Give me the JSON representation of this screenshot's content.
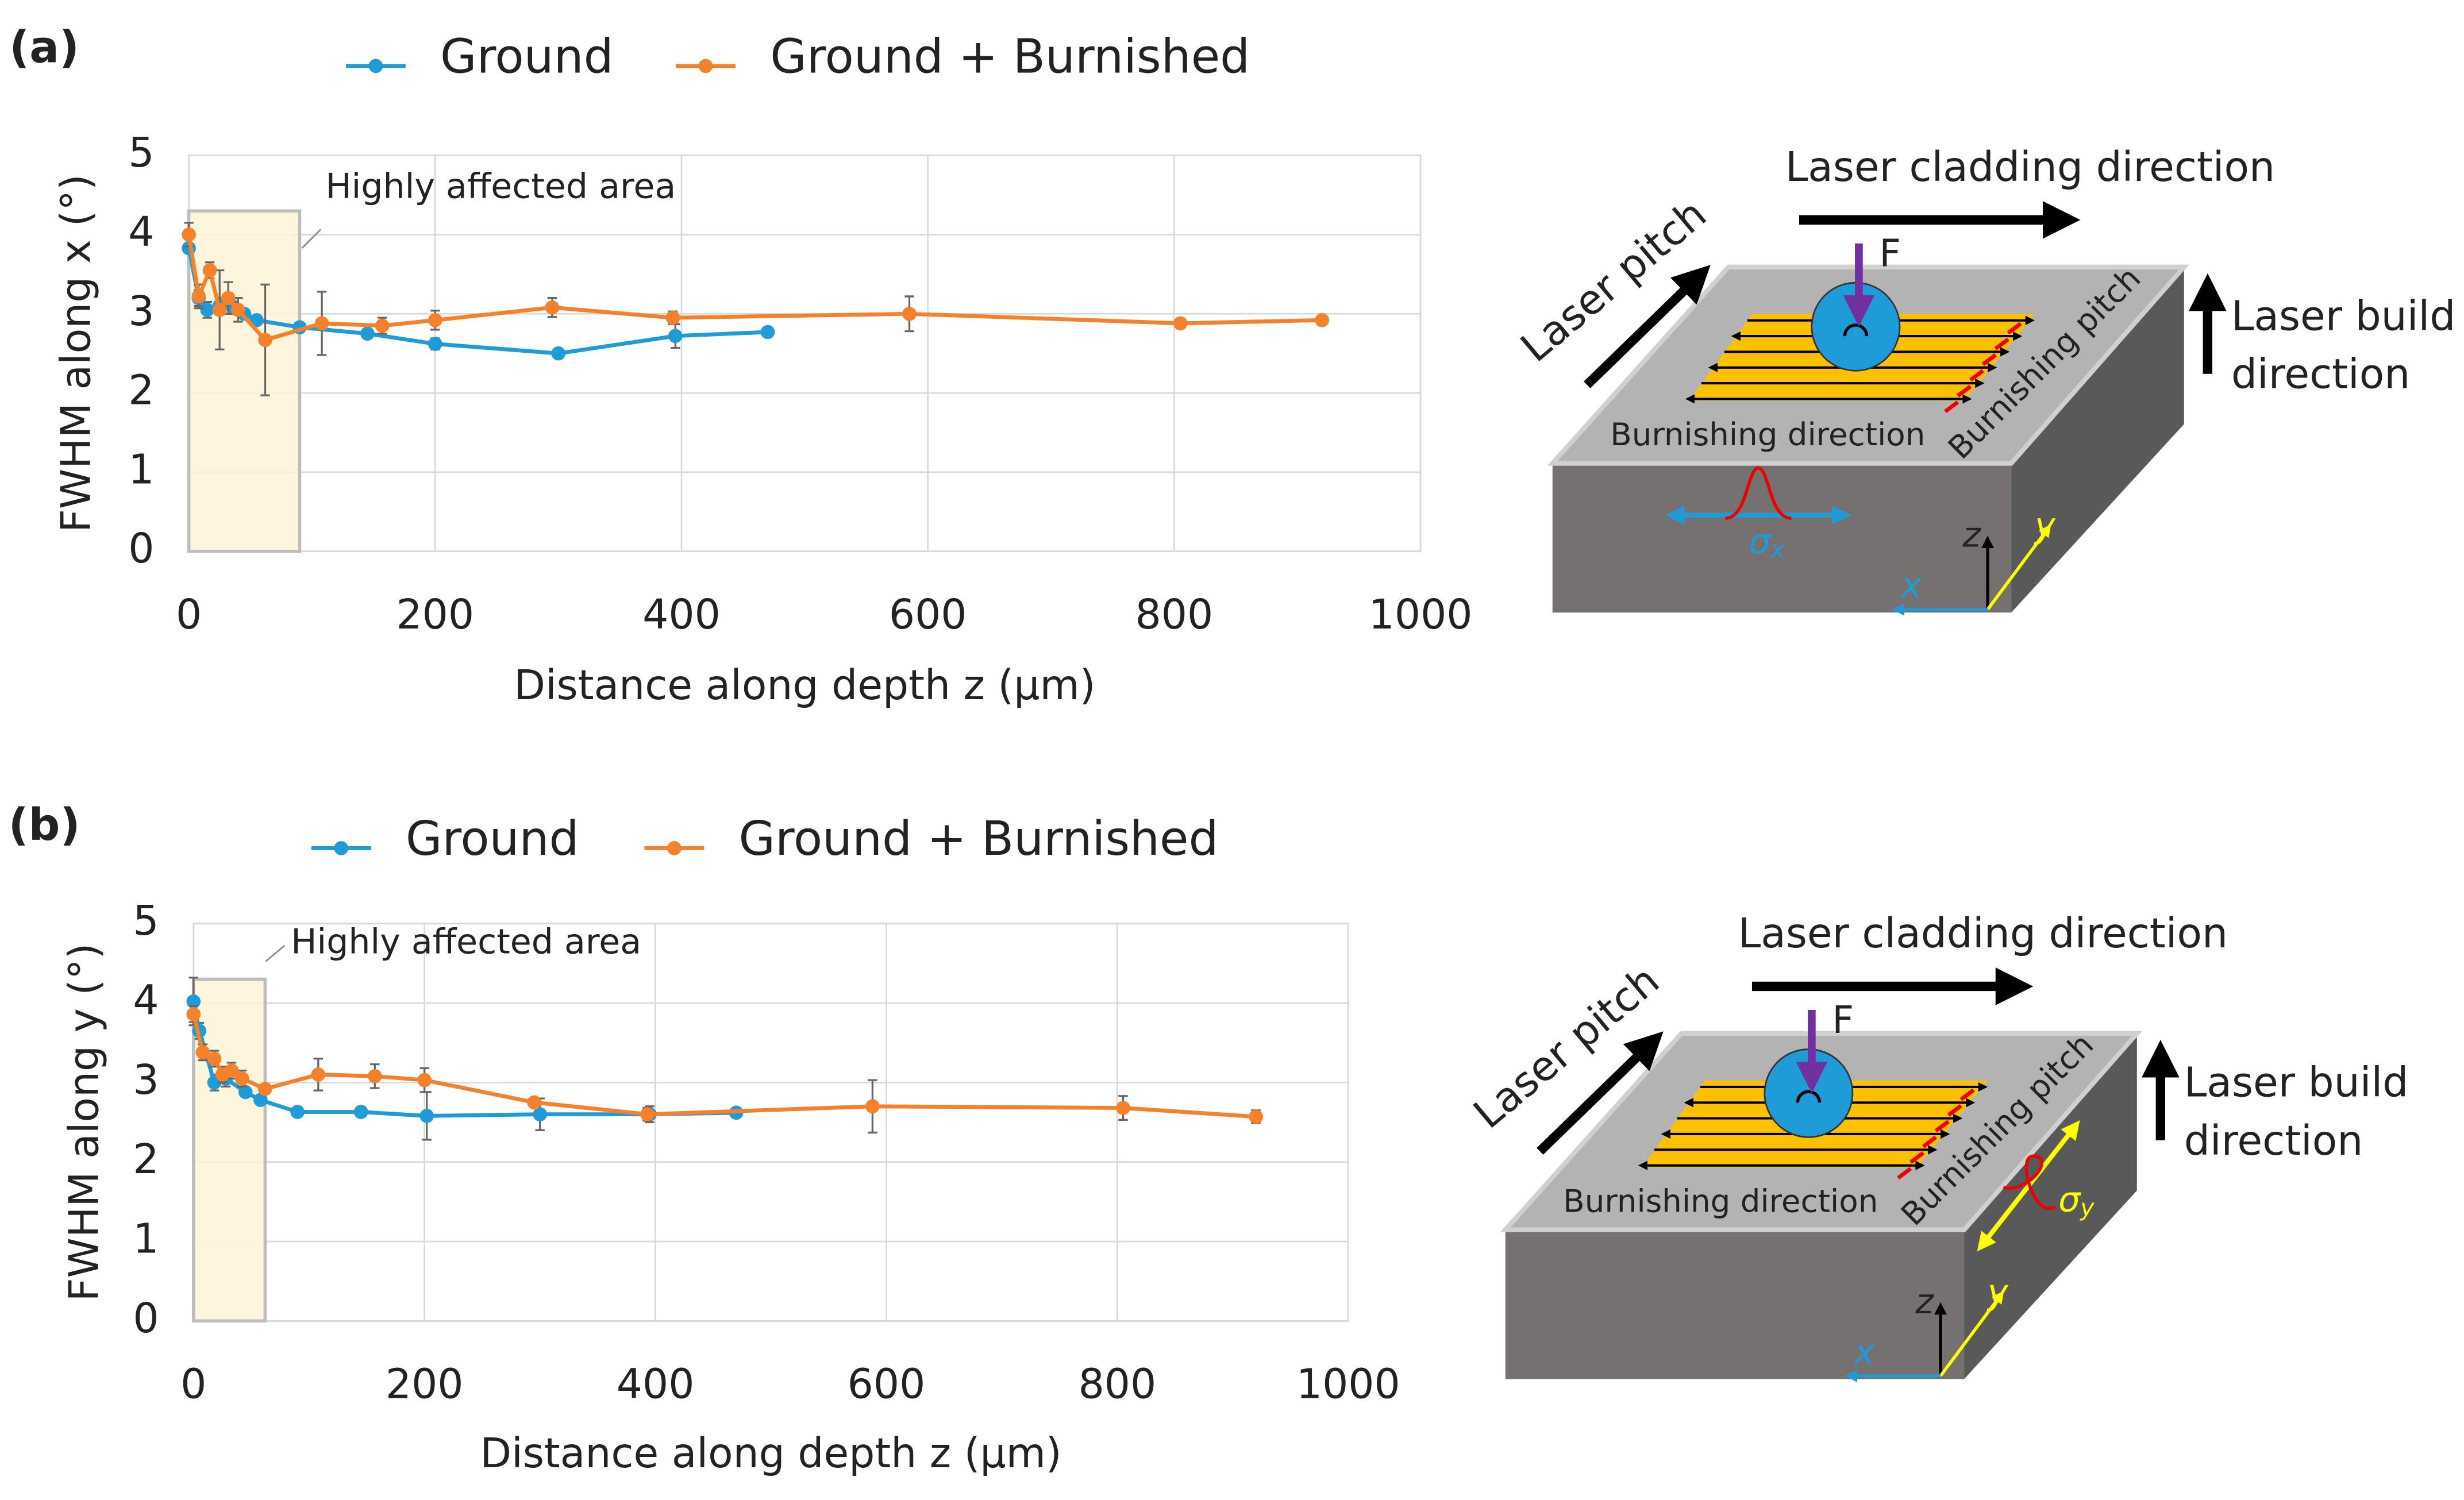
{
  "chart_data": [
    {
      "type": "line",
      "panel": "(a)",
      "xlabel": "Distance along depth z (µm)",
      "ylabel": "FWHM along x (°)",
      "xlim": [
        0,
        1000
      ],
      "xticks": [
        0,
        200,
        400,
        600,
        800,
        1000
      ],
      "ylim": [
        0,
        5
      ],
      "yticks": [
        0,
        1,
        2,
        3,
        4,
        5
      ],
      "grid": true,
      "legend": "top",
      "annotation": {
        "text": "Highly affected area",
        "x": [
          0,
          90
        ],
        "y": [
          0,
          4.3
        ]
      },
      "series": [
        {
          "name": "Ground",
          "color": "#1f9bd7",
          "x": [
            0,
            8,
            15,
            25,
            35,
            45,
            55,
            90,
            145,
            200,
            300,
            395,
            470
          ],
          "values": [
            3.83,
            3.2,
            3.05,
            3.1,
            3.1,
            3.0,
            2.92,
            2.83,
            2.75,
            2.62,
            2.5,
            2.72,
            2.77
          ],
          "errors": [
            0.05,
            0.1,
            0.1,
            0.1,
            0.1,
            0.05,
            0.05,
            0.05,
            0.05,
            0.07,
            0.03,
            0.15,
            0.05
          ]
        },
        {
          "name": "Ground + Burnished",
          "color": "#f5822a",
          "x": [
            0,
            8,
            17,
            25,
            32,
            40,
            62,
            108,
            157,
            200,
            295,
            393,
            585,
            805,
            920
          ],
          "values": [
            4.0,
            3.22,
            3.55,
            3.05,
            3.2,
            3.05,
            2.67,
            2.88,
            2.85,
            2.92,
            3.08,
            2.95,
            3.0,
            2.88,
            2.92
          ],
          "errors": [
            0.15,
            0.15,
            0.1,
            0.5,
            0.2,
            0.15,
            0.7,
            0.4,
            0.1,
            0.12,
            0.12,
            0.08,
            0.22,
            0.05,
            0.05
          ]
        }
      ]
    },
    {
      "type": "line",
      "panel": "(b)",
      "xlabel": "Distance along depth z (µm)",
      "ylabel": "FWHM along y (°)",
      "xlim": [
        0,
        1000
      ],
      "xticks": [
        0,
        200,
        400,
        600,
        800,
        1000
      ],
      "ylim": [
        0,
        5
      ],
      "yticks": [
        0,
        1,
        2,
        3,
        4,
        5
      ],
      "grid": true,
      "legend": "top",
      "annotation": {
        "text": "Highly affected area",
        "x": [
          0,
          62
        ],
        "y": [
          0,
          4.3
        ]
      },
      "series": [
        {
          "name": "Ground",
          "color": "#1f9bd7",
          "x": [
            0,
            5,
            18,
            28,
            45,
            58,
            90,
            145,
            202,
            300,
            395,
            470
          ],
          "values": [
            4.02,
            3.65,
            3.0,
            3.05,
            2.88,
            2.78,
            2.63,
            2.63,
            2.58,
            2.6,
            2.6,
            2.62
          ],
          "errors": [
            0.3,
            0.1,
            0.1,
            0.1,
            0.05,
            0.05,
            0.03,
            0.06,
            0.3,
            0.2,
            0.1,
            0.03
          ]
        },
        {
          "name": "Ground + Burnished",
          "color": "#f5822a",
          "x": [
            0,
            8,
            18,
            25,
            33,
            42,
            62,
            108,
            157,
            200,
            295,
            393,
            588,
            805,
            920
          ],
          "values": [
            3.86,
            3.38,
            3.3,
            3.1,
            3.15,
            3.05,
            2.92,
            3.1,
            3.08,
            3.03,
            2.75,
            2.6,
            2.7,
            2.68,
            2.57
          ],
          "errors": [
            0.1,
            0.1,
            0.1,
            0.1,
            0.1,
            0.1,
            0.05,
            0.2,
            0.15,
            0.15,
            0.05,
            0.08,
            0.33,
            0.15,
            0.08
          ]
        }
      ]
    }
  ],
  "diagrams": [
    {
      "cladding": "Laser cladding direction",
      "pitch": "Laser pitch",
      "build": [
        "Laser build",
        "direction"
      ],
      "burnish_dir": "Burnishing direction",
      "burnish_pitch": "Burnishing pitch",
      "force": "F",
      "axes": [
        "x",
        "y",
        "z"
      ],
      "sigma": "σ",
      "sigma_sub": "x"
    },
    {
      "cladding": "Laser cladding direction",
      "pitch": "Laser pitch",
      "build": [
        "Laser build",
        "direction"
      ],
      "burnish_dir": "Burnishing direction",
      "burnish_pitch": "Burnishing pitch",
      "force": "F",
      "axes": [
        "x",
        "y",
        "z"
      ],
      "sigma": "σ",
      "sigma_sub": "y"
    }
  ]
}
